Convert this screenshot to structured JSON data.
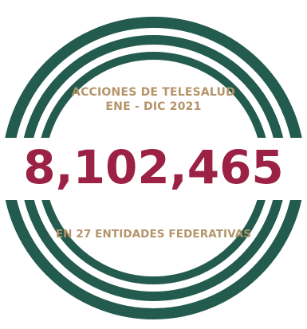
{
  "infographic": {
    "heading_line1": "ACCIONES DE TELESALUD",
    "heading_line2": "ENE - DIC 2021",
    "total_actions": "8,102,465",
    "footer": "EN 27 ENTIDADES FEDERATIVAS"
  },
  "colors": {
    "ring_green": "#235b4e",
    "number_maroon": "#9b2245",
    "text_gold": "#b5946a",
    "background": "#ffffff"
  }
}
